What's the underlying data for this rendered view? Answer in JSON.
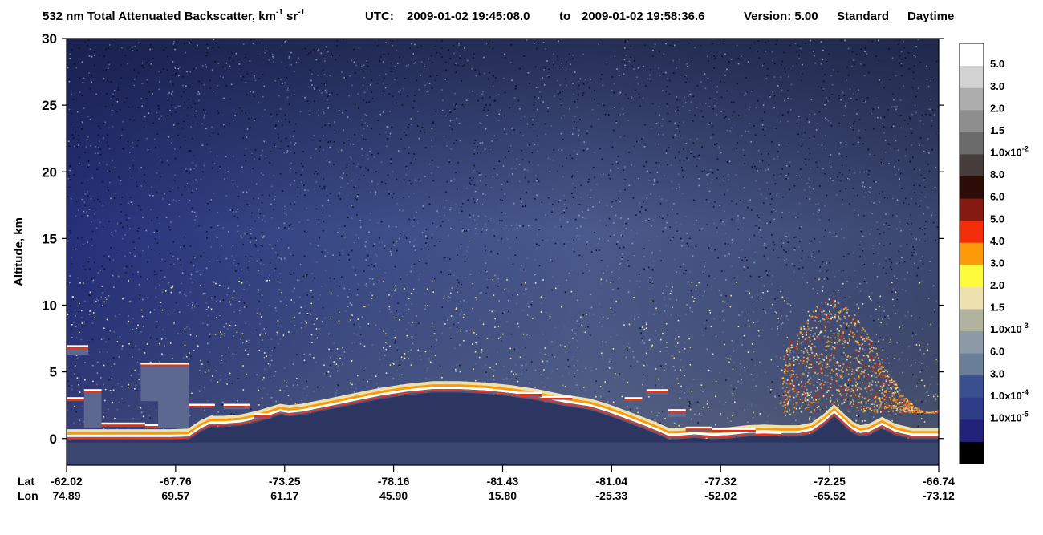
{
  "header": {
    "title_main": "532 nm Total Attenuated Backscatter, km",
    "title_exp1": "-1",
    "title_mid": " sr",
    "title_exp2": "-1",
    "utc_label": "UTC:",
    "utc_start": "2009-01-02 19:45:08.0",
    "utc_to": "to",
    "utc_end": "2009-01-02 19:58:36.6",
    "version_label": "Version: 5.00",
    "product_label": "Standard",
    "mode_label": "Daytime"
  },
  "chart_data": {
    "type": "heatmap",
    "title": "532 nm Total Attenuated Backscatter, km-1 sr-1",
    "ylabel": "Altitude, km",
    "ylim": [
      -2,
      30
    ],
    "yticks": [
      0,
      5,
      10,
      15,
      20,
      25,
      30
    ],
    "x_axes": [
      {
        "label": "Lat",
        "ticks": [
          "-62.02",
          "-67.76",
          "-73.25",
          "-78.16",
          "-81.43",
          "-81.04",
          "-77.32",
          "-72.25",
          "-66.74"
        ]
      },
      {
        "label": "Lon",
        "ticks": [
          "74.89",
          "69.57",
          "61.17",
          "45.90",
          "15.80",
          "-25.33",
          "-52.02",
          "-65.52",
          "-73.12"
        ]
      }
    ],
    "colorbar": [
      {
        "label": "",
        "color": "#000000"
      },
      {
        "label": "1.0x10",
        "exp": "-5",
        "color": "#22227a"
      },
      {
        "label": "1.0x10",
        "exp": "-4",
        "color": "#2f3d88"
      },
      {
        "label": "3.0",
        "color": "#3a4f90"
      },
      {
        "label": "6.0",
        "color": "#6b7e98"
      },
      {
        "label": "1.0x10",
        "exp": "-3",
        "color": "#8d9aa8"
      },
      {
        "label": "1.5",
        "color": "#b1b39e"
      },
      {
        "label": "2.0",
        "color": "#ede1b0"
      },
      {
        "label": "3.0",
        "color": "#fefb3c"
      },
      {
        "label": "4.0",
        "color": "#fc9a0a"
      },
      {
        "label": "5.0",
        "color": "#f22d08"
      },
      {
        "label": "6.0",
        "color": "#851a12"
      },
      {
        "label": "8.0",
        "color": "#2d0b07"
      },
      {
        "label": "1.0x10",
        "exp": "-2",
        "color": "#463d3a"
      },
      {
        "label": "1.5",
        "color": "#6b6b6b"
      },
      {
        "label": "2.0",
        "color": "#8e8e8e"
      },
      {
        "label": "3.0",
        "color": "#adadad"
      },
      {
        "label": "5.0",
        "color": "#d2d2d2"
      },
      {
        "label": "",
        "color": "#ffffff"
      }
    ],
    "surface_profile": [
      [
        0.0,
        0.0
      ],
      [
        0.02,
        0.0
      ],
      [
        0.04,
        0.0
      ],
      [
        0.06,
        0.0
      ],
      [
        0.08,
        0.0
      ],
      [
        0.1,
        0.0
      ],
      [
        0.12,
        0.0
      ],
      [
        0.14,
        0.05
      ],
      [
        0.155,
        0.7
      ],
      [
        0.165,
        1.0
      ],
      [
        0.18,
        1.0
      ],
      [
        0.2,
        1.1
      ],
      [
        0.22,
        1.4
      ],
      [
        0.235,
        1.7
      ],
      [
        0.245,
        1.9
      ],
      [
        0.255,
        1.8
      ],
      [
        0.27,
        1.9
      ],
      [
        0.3,
        2.3
      ],
      [
        0.33,
        2.7
      ],
      [
        0.36,
        3.1
      ],
      [
        0.39,
        3.4
      ],
      [
        0.42,
        3.6
      ],
      [
        0.45,
        3.6
      ],
      [
        0.48,
        3.5
      ],
      [
        0.51,
        3.3
      ],
      [
        0.54,
        3.0
      ],
      [
        0.57,
        2.6
      ],
      [
        0.6,
        2.3
      ],
      [
        0.62,
        1.9
      ],
      [
        0.645,
        1.3
      ],
      [
        0.665,
        0.8
      ],
      [
        0.68,
        0.4
      ],
      [
        0.69,
        0.1
      ],
      [
        0.7,
        0.1
      ],
      [
        0.72,
        0.2
      ],
      [
        0.74,
        0.1
      ],
      [
        0.76,
        0.15
      ],
      [
        0.78,
        0.3
      ],
      [
        0.8,
        0.35
      ],
      [
        0.82,
        0.3
      ],
      [
        0.84,
        0.3
      ],
      [
        0.855,
        0.5
      ],
      [
        0.87,
        1.2
      ],
      [
        0.88,
        1.8
      ],
      [
        0.89,
        1.2
      ],
      [
        0.9,
        0.6
      ],
      [
        0.91,
        0.3
      ],
      [
        0.92,
        0.4
      ],
      [
        0.935,
        0.9
      ],
      [
        0.95,
        0.4
      ],
      [
        0.97,
        0.1
      ],
      [
        1.0,
        0.1
      ]
    ],
    "clouds": [
      {
        "x0": 0.0,
        "x1": 0.02,
        "z0": 2.8,
        "z1": 3.1
      },
      {
        "x0": 0.0,
        "x1": 0.025,
        "z0": 6.3,
        "z1": 7.0
      },
      {
        "x0": 0.02,
        "x1": 0.04,
        "z0": 0.8,
        "z1": 3.7
      },
      {
        "x0": 0.04,
        "x1": 0.09,
        "z0": 0.9,
        "z1": 1.2
      },
      {
        "x0": 0.09,
        "x1": 0.115,
        "z0": 0.9,
        "z1": 1.1
      },
      {
        "x0": 0.085,
        "x1": 0.115,
        "z0": 2.8,
        "z1": 5.7
      },
      {
        "x0": 0.105,
        "x1": 0.14,
        "z0": 0.8,
        "z1": 5.7
      },
      {
        "x0": 0.14,
        "x1": 0.17,
        "z0": 2.3,
        "z1": 2.6
      },
      {
        "x0": 0.18,
        "x1": 0.21,
        "z0": 2.2,
        "z1": 2.6
      },
      {
        "x0": 0.215,
        "x1": 0.235,
        "z0": 1.5,
        "z1": 1.9
      },
      {
        "x0": 0.515,
        "x1": 0.545,
        "z0": 3.1,
        "z1": 3.5
      },
      {
        "x0": 0.545,
        "x1": 0.58,
        "z0": 2.9,
        "z1": 3.2
      },
      {
        "x0": 0.64,
        "x1": 0.66,
        "z0": 2.8,
        "z1": 3.1
      },
      {
        "x0": 0.665,
        "x1": 0.69,
        "z0": 3.3,
        "z1": 3.7
      },
      {
        "x0": 0.69,
        "x1": 0.71,
        "z0": 1.6,
        "z1": 2.2
      },
      {
        "x0": 0.71,
        "x1": 0.74,
        "z0": 0.5,
        "z1": 0.9
      },
      {
        "x0": 0.74,
        "x1": 0.79,
        "z0": 0.5,
        "z1": 0.8
      },
      {
        "x0": 0.79,
        "x1": 0.82,
        "z0": 0.2,
        "z1": 0.5
      }
    ],
    "ice_cloud_region": {
      "x0": 0.82,
      "x1": 1.0,
      "z0": 2.0,
      "z1": 10.5
    },
    "surface_line_color": "#ff2b1c"
  }
}
